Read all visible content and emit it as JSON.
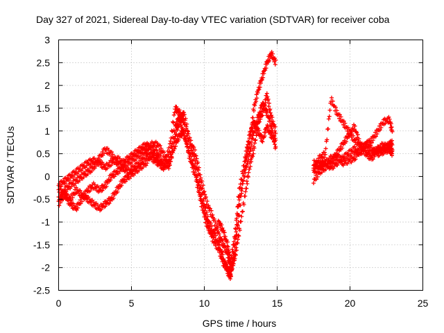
{
  "chart_data": {
    "type": "scatter",
    "title": "Day 327 of 2021, Sidereal Day-to-day VTEC variation (SDTVAR) for receiver coba",
    "xlabel": "GPS time / hours",
    "ylabel": "SDTVAR / TECUs",
    "xlim": [
      0,
      25
    ],
    "ylim": [
      -2.5,
      3
    ],
    "xticks": [
      "0",
      "5",
      "10",
      "15",
      "20",
      "25"
    ],
    "yticks": [
      "-2.5",
      "-2",
      "-1.5",
      "-1",
      "-0.5",
      "0",
      "0.5",
      "1",
      "1.5",
      "2",
      "2.5",
      "3"
    ],
    "grid": true,
    "marker": "+",
    "color": "#ff0000",
    "series": [
      {
        "x": [
          0,
          0.4,
          0.8,
          1.2,
          1.6,
          2.0,
          2.4,
          2.8,
          3.2,
          3.6,
          4.0,
          4.4,
          4.8,
          5.2,
          5.6,
          6.0,
          6.4,
          6.8,
          7.2,
          7.6,
          8.0,
          8.3,
          8.6,
          9.0,
          9.4,
          9.8,
          10.2,
          10.6,
          11.0,
          11.3,
          11.6,
          11.8,
          12.1,
          12.4,
          12.8,
          13.1,
          13.4,
          13.7,
          14.0,
          14.3,
          14.6,
          14.9
        ],
        "y": [
          -0.2,
          -0.1,
          0.0,
          0.1,
          0.2,
          0.3,
          0.35,
          0.3,
          0.2,
          0.3,
          0.4,
          0.3,
          0.4,
          0.5,
          0.6,
          0.7,
          0.6,
          0.5,
          0.3,
          0.6,
          1.5,
          1.4,
          1.2,
          0.7,
          0.3,
          -0.3,
          -0.9,
          -1.2,
          -1.5,
          -1.8,
          -2.1,
          -2.2,
          -1.7,
          -0.8,
          0.3,
          0.7,
          1.5,
          1.9,
          2.2,
          2.5,
          2.7,
          2.5
        ]
      },
      {
        "x": [
          0,
          0.4,
          0.8,
          1.2,
          1.6,
          2.0,
          2.4,
          2.8,
          3.2,
          3.6,
          4.0,
          4.4,
          4.8,
          5.2,
          5.6,
          6.0,
          6.4,
          6.8,
          7.2,
          7.6,
          8.0,
          8.3,
          8.6,
          9.0,
          9.4,
          9.8,
          10.2,
          10.6,
          11.0,
          11.3,
          11.6,
          11.8,
          12.1,
          12.4,
          12.8,
          13.1,
          13.4,
          13.7,
          14.0,
          14.3,
          14.6,
          14.9
        ],
        "y": [
          -0.5,
          -0.3,
          -0.2,
          -0.1,
          0.0,
          0.1,
          0.2,
          0.4,
          0.6,
          0.5,
          0.3,
          0.2,
          0.1,
          0.2,
          0.3,
          0.5,
          0.4,
          0.3,
          0.2,
          0.4,
          1.1,
          1.3,
          0.9,
          0.5,
          0.1,
          -0.5,
          -1.0,
          -1.4,
          -1.6,
          -1.9,
          -2.0,
          -2.2,
          -1.5,
          -0.5,
          0.1,
          0.5,
          1.0,
          1.3,
          1.6,
          1.4,
          1.1,
          0.6
        ]
      },
      {
        "x": [
          0,
          0.4,
          0.8,
          1.2,
          1.6,
          2.0,
          2.4,
          2.8,
          3.2,
          3.6,
          4.0,
          4.4,
          4.8,
          5.2,
          5.6,
          6.0,
          6.4,
          6.8,
          7.2,
          7.6,
          8.0,
          8.3,
          8.6,
          9.0,
          9.4,
          9.8,
          10.2,
          10.6,
          11.0,
          11.3,
          11.6,
          11.8,
          12.1,
          12.4,
          12.8,
          13.1,
          13.4,
          13.7,
          14.0,
          14.3,
          14.6,
          14.9
        ],
        "y": [
          -0.6,
          -0.4,
          -0.5,
          -0.3,
          -0.4,
          -0.5,
          -0.6,
          -0.7,
          -0.6,
          -0.5,
          -0.3,
          -0.1,
          0.0,
          0.1,
          0.2,
          0.3,
          0.5,
          0.4,
          0.2,
          0.3,
          0.7,
          0.9,
          1.0,
          0.4,
          0.0,
          -0.6,
          -1.1,
          -1.3,
          -1.0,
          -1.2,
          -1.5,
          -1.9,
          -1.3,
          -0.3,
          0.4,
          0.9,
          1.2,
          1.0,
          0.8,
          1.1,
          0.9,
          0.8
        ]
      },
      {
        "x": [
          0,
          0.4,
          0.8,
          1.2,
          1.6,
          2.0,
          2.4,
          2.8,
          3.2,
          3.6,
          4.0,
          4.4,
          4.8,
          5.2,
          5.6,
          6.0,
          6.4,
          6.8,
          7.2,
          7.6,
          8.0,
          8.3,
          8.6,
          9.0,
          9.4,
          9.8,
          10.2,
          10.6,
          11.0,
          11.3,
          11.6,
          11.8,
          12.1,
          12.4,
          12.8,
          13.1,
          13.4,
          13.7,
          14.0,
          14.3,
          14.6,
          14.9
        ],
        "y": [
          -0.3,
          -0.4,
          -0.6,
          -0.7,
          -0.5,
          -0.3,
          -0.2,
          -0.3,
          -0.2,
          0.0,
          0.1,
          0.2,
          0.3,
          0.4,
          0.5,
          0.6,
          0.7,
          0.7,
          0.5,
          0.2,
          0.9,
          1.2,
          1.4,
          0.8,
          0.5,
          -0.1,
          -0.6,
          -0.9,
          -1.3,
          -1.5,
          -1.7,
          -2.0,
          -1.8,
          -1.2,
          -0.4,
          0.2,
          0.6,
          1.2,
          1.4,
          1.8,
          1.3,
          1.0
        ]
      },
      {
        "x": [
          17.5,
          17.9,
          18.3,
          18.7,
          19.1,
          19.5,
          19.9,
          20.3,
          20.7,
          21.1,
          21.5,
          21.9,
          22.3,
          22.7,
          22.9
        ],
        "y": [
          -0.1,
          0.1,
          0.2,
          0.3,
          0.5,
          0.7,
          0.9,
          1.1,
          0.7,
          0.6,
          0.5,
          0.6,
          0.6,
          0.7,
          0.75
        ]
      },
      {
        "x": [
          17.5,
          17.9,
          18.3,
          18.7,
          19.1,
          19.5,
          19.9,
          20.3,
          20.7,
          21.1,
          21.5,
          21.9,
          22.3,
          22.7,
          22.9
        ],
        "y": [
          0.3,
          0.25,
          0.3,
          0.4,
          0.45,
          0.3,
          0.35,
          0.4,
          0.6,
          0.7,
          0.8,
          1.0,
          1.2,
          1.25,
          1.0
        ]
      },
      {
        "x": [
          17.5,
          17.9,
          18.3,
          18.7,
          19.1,
          19.5,
          19.9,
          20.3,
          20.7,
          21.1,
          21.5,
          21.9,
          22.3,
          22.7,
          22.9
        ],
        "y": [
          0.2,
          0.4,
          0.5,
          1.7,
          1.4,
          1.2,
          1.0,
          0.8,
          0.7,
          0.5,
          0.4,
          0.6,
          0.7,
          0.6,
          0.55
        ]
      },
      {
        "x": [
          17.5,
          17.9,
          18.3,
          18.7,
          19.1,
          19.5,
          19.9,
          20.3,
          20.7,
          21.1,
          21.5,
          21.9,
          22.3,
          22.7,
          22.9
        ],
        "y": [
          0.1,
          0.2,
          0.3,
          0.2,
          0.3,
          0.4,
          0.5,
          0.6,
          0.5,
          0.7,
          0.6,
          0.5,
          0.55,
          0.6,
          0.5
        ]
      }
    ]
  }
}
